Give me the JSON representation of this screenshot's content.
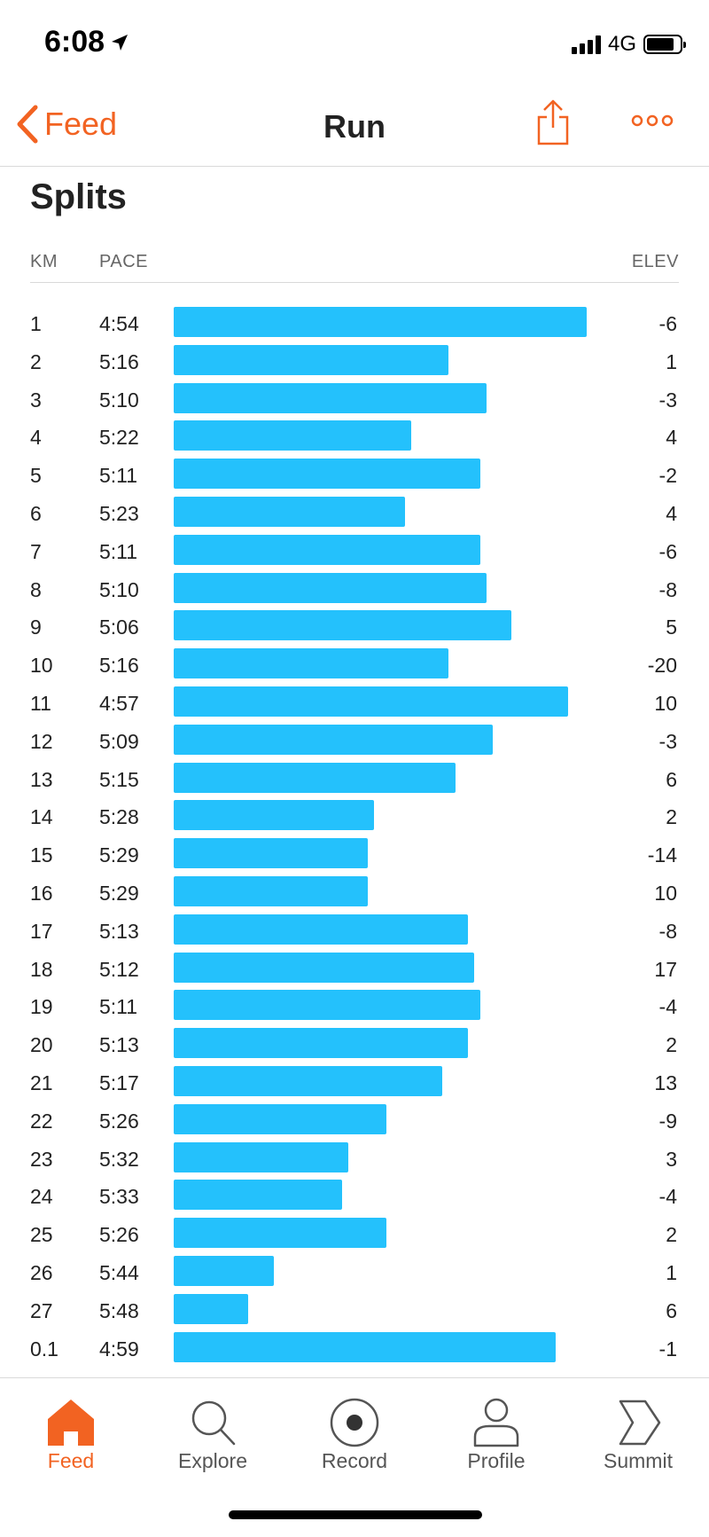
{
  "status_bar": {
    "time": "6:08",
    "network": "4G"
  },
  "nav": {
    "back_label": "Feed",
    "title": "Run"
  },
  "splits": {
    "title": "Splits",
    "headers": {
      "km": "KM",
      "pace": "PACE",
      "elev": "ELEV"
    },
    "bar_color": "#24c1fc",
    "rows": [
      {
        "km": "1",
        "pace": "4:54",
        "elev": "-6"
      },
      {
        "km": "2",
        "pace": "5:16",
        "elev": "1"
      },
      {
        "km": "3",
        "pace": "5:10",
        "elev": "-3"
      },
      {
        "km": "4",
        "pace": "5:22",
        "elev": "4"
      },
      {
        "km": "5",
        "pace": "5:11",
        "elev": "-2"
      },
      {
        "km": "6",
        "pace": "5:23",
        "elev": "4"
      },
      {
        "km": "7",
        "pace": "5:11",
        "elev": "-6"
      },
      {
        "km": "8",
        "pace": "5:10",
        "elev": "-8"
      },
      {
        "km": "9",
        "pace": "5:06",
        "elev": "5"
      },
      {
        "km": "10",
        "pace": "5:16",
        "elev": "-20"
      },
      {
        "km": "11",
        "pace": "4:57",
        "elev": "10"
      },
      {
        "km": "12",
        "pace": "5:09",
        "elev": "-3"
      },
      {
        "km": "13",
        "pace": "5:15",
        "elev": "6"
      },
      {
        "km": "14",
        "pace": "5:28",
        "elev": "2"
      },
      {
        "km": "15",
        "pace": "5:29",
        "elev": "-14"
      },
      {
        "km": "16",
        "pace": "5:29",
        "elev": "10"
      },
      {
        "km": "17",
        "pace": "5:13",
        "elev": "-8"
      },
      {
        "km": "18",
        "pace": "5:12",
        "elev": "17"
      },
      {
        "km": "19",
        "pace": "5:11",
        "elev": "-4"
      },
      {
        "km": "20",
        "pace": "5:13",
        "elev": "2"
      },
      {
        "km": "21",
        "pace": "5:17",
        "elev": "13"
      },
      {
        "km": "22",
        "pace": "5:26",
        "elev": "-9"
      },
      {
        "km": "23",
        "pace": "5:32",
        "elev": "3"
      },
      {
        "km": "24",
        "pace": "5:33",
        "elev": "-4"
      },
      {
        "km": "25",
        "pace": "5:26",
        "elev": "2"
      },
      {
        "km": "26",
        "pace": "5:44",
        "elev": "1"
      },
      {
        "km": "27",
        "pace": "5:48",
        "elev": "6"
      },
      {
        "km": "0.1",
        "pace": "4:59",
        "elev": "-1"
      }
    ]
  },
  "tabs": [
    {
      "label": "Feed",
      "icon": "home-icon",
      "active": true
    },
    {
      "label": "Explore",
      "icon": "search-icon",
      "active": false
    },
    {
      "label": "Record",
      "icon": "record-icon",
      "active": false
    },
    {
      "label": "Profile",
      "icon": "profile-icon",
      "active": false
    },
    {
      "label": "Summit",
      "icon": "summit-icon",
      "active": false
    }
  ],
  "colors": {
    "accent": "#f26322",
    "bar": "#24c1fc"
  }
}
